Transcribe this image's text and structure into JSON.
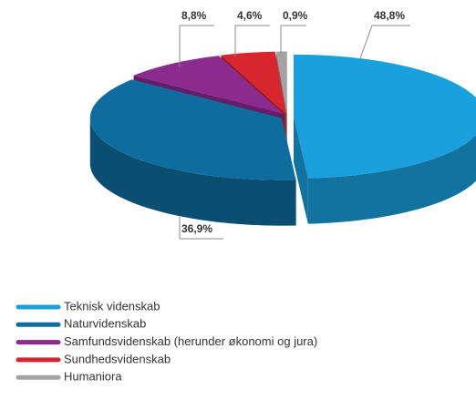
{
  "chart_data": {
    "type": "pie3d",
    "categories": [
      "Teknisk videnskab",
      "Naturvidenskab",
      "Samfundsvidenskab (herunder økonomi og jura)",
      "Sundhedsvidenskab",
      "Humaniora"
    ],
    "values": [
      48.8,
      36.9,
      8.8,
      4.6,
      0.9
    ],
    "value_labels": [
      "48,8%",
      "36,9%",
      "8,8%",
      "4,6%",
      "0,9%"
    ],
    "colors": [
      "#1aa0dc",
      "#0e6d9e",
      "#8b2a8f",
      "#d8262e",
      "#a3a3a3"
    ],
    "legend": "bottom-left"
  }
}
